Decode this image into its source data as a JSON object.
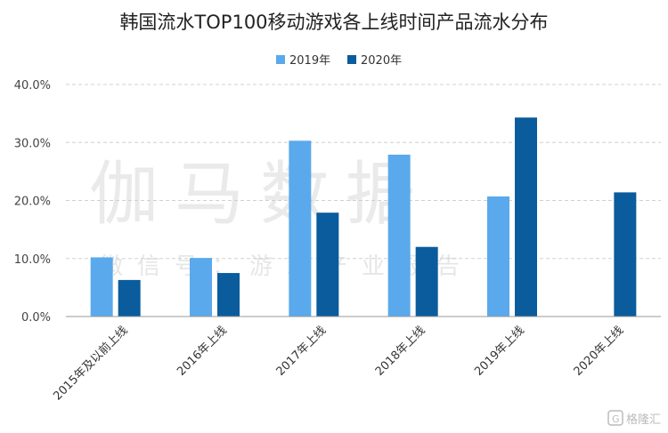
{
  "chart_data": {
    "type": "bar",
    "title": "韩国流水TOP100移动游戏各上线时间产品流水分布",
    "categories": [
      "2015年及以前上线",
      "2016年上线",
      "2017年上线",
      "2018年上线",
      "2019年上线",
      "2020年上线"
    ],
    "series": [
      {
        "name": "2019年",
        "color": "#5aa9ec",
        "values": [
          10.2,
          10.1,
          30.3,
          27.9,
          20.7,
          0
        ]
      },
      {
        "name": "2020年",
        "color": "#0a5c9c",
        "values": [
          6.3,
          7.5,
          17.9,
          12.0,
          34.3,
          21.4
        ]
      }
    ],
    "ylim": [
      0,
      40
    ],
    "yticks": [
      "0.0%",
      "10.0%",
      "20.0%",
      "30.0%",
      "40.0%"
    ],
    "ytick_values": [
      0,
      10,
      20,
      30,
      40
    ],
    "legend_position": "top-center",
    "grid": true
  },
  "watermark": {
    "main": "伽马数据",
    "sub": "微信号：游戏产业报告"
  },
  "logo": {
    "text": "格隆汇"
  }
}
